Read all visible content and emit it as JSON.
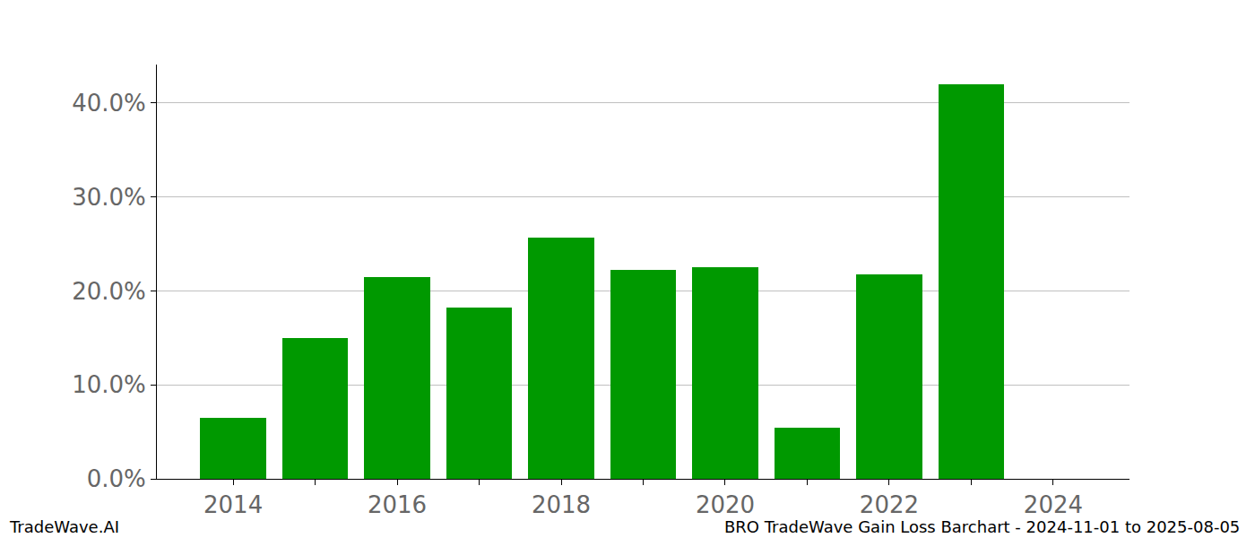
{
  "chart_data": {
    "type": "bar",
    "categories": [
      2014,
      2015,
      2016,
      2017,
      2018,
      2019,
      2020,
      2021,
      2022,
      2023
    ],
    "values": [
      6.5,
      15.0,
      21.5,
      18.2,
      25.7,
      22.2,
      22.5,
      5.4,
      21.8,
      42.0
    ],
    "color": "#009900",
    "xlim": [
      2013.07,
      2024.93
    ],
    "xticks": [
      2014,
      2016,
      2018,
      2020,
      2022,
      2024
    ],
    "ylim": [
      0,
      44.1
    ],
    "yticks": [
      {
        "value": 0,
        "label": "0.0%"
      },
      {
        "value": 10,
        "label": "10.0%"
      },
      {
        "value": 20,
        "label": "20.0%"
      },
      {
        "value": 30,
        "label": "30.0%"
      },
      {
        "value": 40,
        "label": "40.0%"
      }
    ],
    "grid": true,
    "annotations": [
      "TradeWave.AI",
      "BRO TradeWave Gain Loss Barchart - 2024-11-01 to 2025-08-05"
    ]
  }
}
